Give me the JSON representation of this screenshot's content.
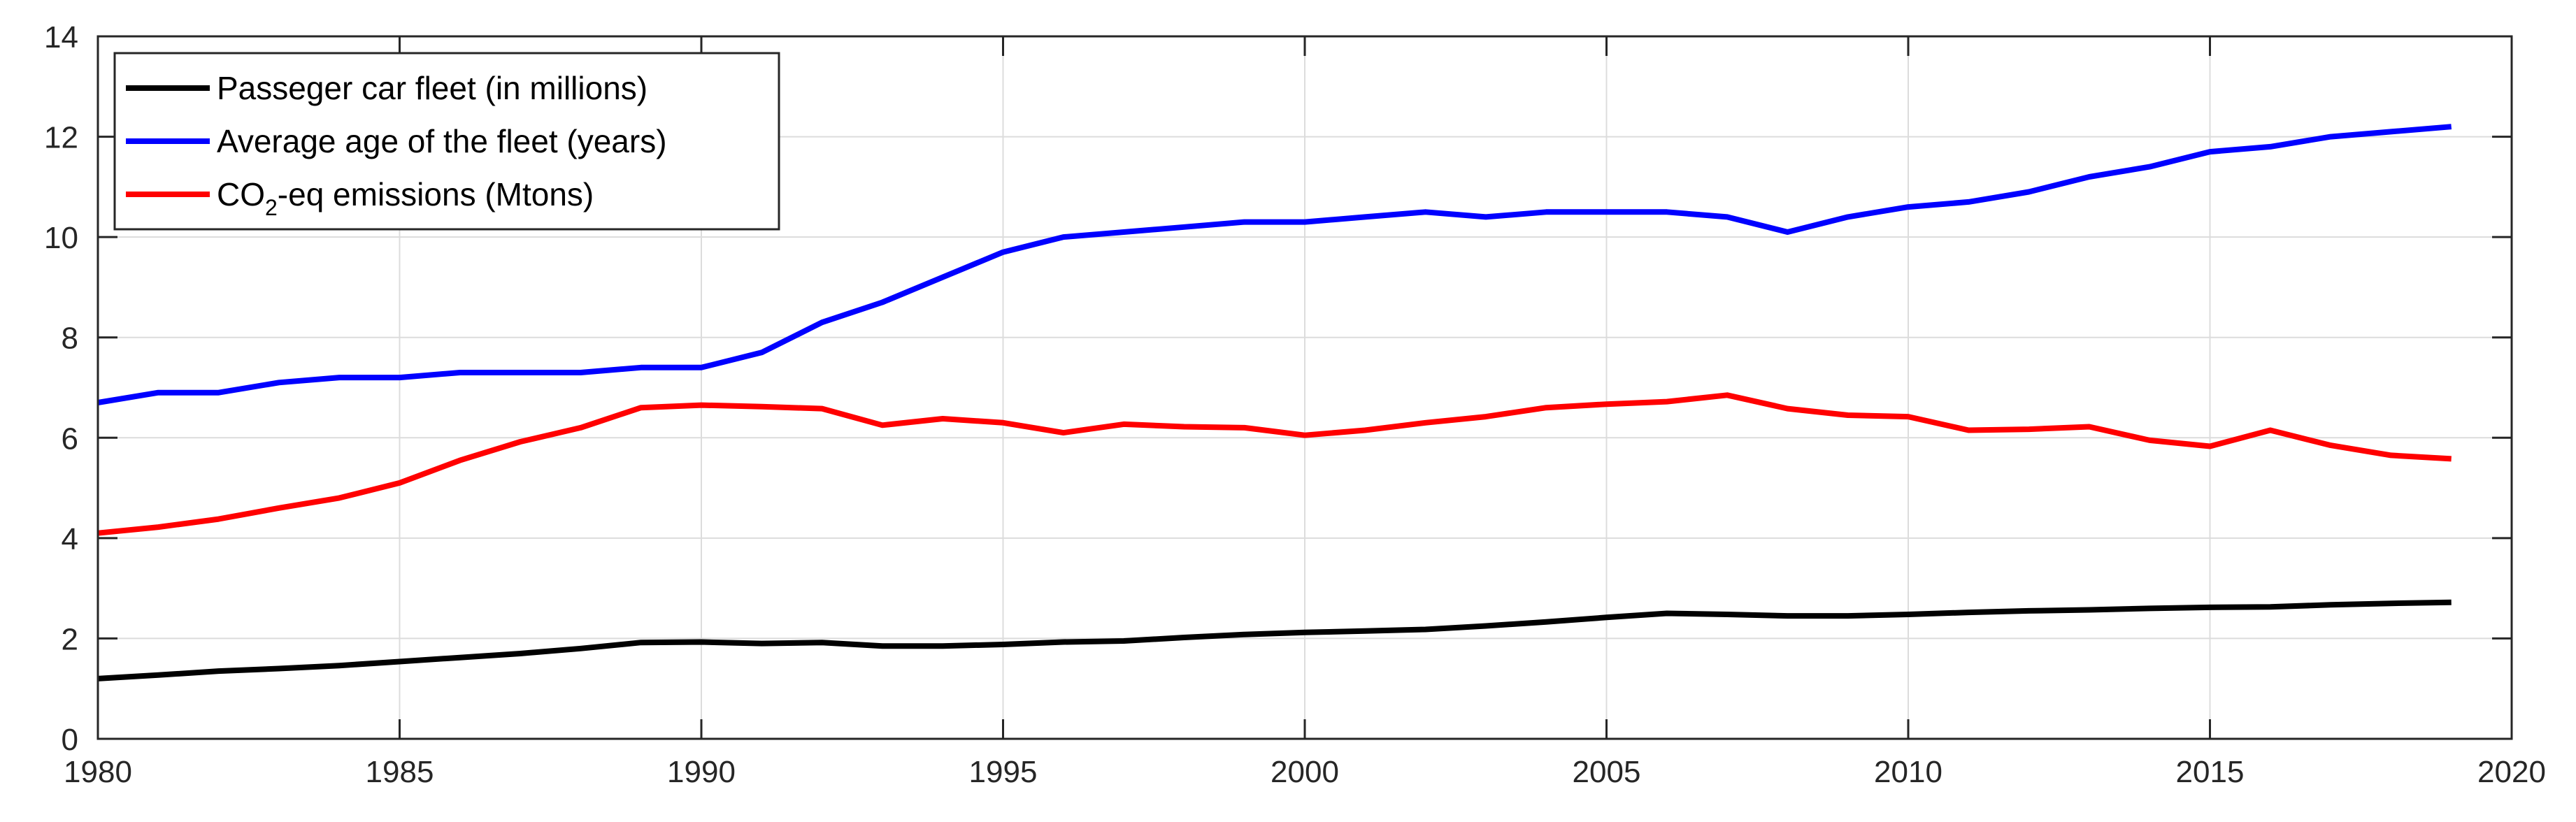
{
  "chart_data": {
    "type": "line",
    "title": "",
    "xlabel": "",
    "ylabel": "",
    "xlim": [
      1980,
      2020
    ],
    "ylim": [
      0,
      14
    ],
    "xticks": [
      1980,
      1985,
      1990,
      1995,
      2000,
      2005,
      2010,
      2015,
      2020
    ],
    "yticks": [
      0,
      2,
      4,
      6,
      8,
      10,
      12,
      14
    ],
    "grid": true,
    "legend_position": "top-left",
    "x": [
      1980,
      1981,
      1982,
      1983,
      1984,
      1985,
      1986,
      1987,
      1988,
      1989,
      1990,
      1991,
      1992,
      1993,
      1994,
      1995,
      1996,
      1997,
      1998,
      1999,
      2000,
      2001,
      2002,
      2003,
      2004,
      2005,
      2006,
      2007,
      2008,
      2009,
      2010,
      2011,
      2012,
      2013,
      2014,
      2015,
      2016,
      2017,
      2018,
      2019
    ],
    "series": [
      {
        "name": "Passeger car fleet (in millions)",
        "color": "#000000",
        "values": [
          1.2,
          1.27,
          1.35,
          1.4,
          1.46,
          1.54,
          1.62,
          1.7,
          1.8,
          1.92,
          1.93,
          1.9,
          1.92,
          1.85,
          1.85,
          1.88,
          1.93,
          1.95,
          2.02,
          2.08,
          2.12,
          2.15,
          2.18,
          2.25,
          2.33,
          2.42,
          2.5,
          2.48,
          2.45,
          2.45,
          2.48,
          2.52,
          2.55,
          2.57,
          2.6,
          2.62,
          2.63,
          2.67,
          2.7,
          2.72
        ]
      },
      {
        "name": "Average age of the fleet (years)",
        "color": "#0000ff",
        "values": [
          6.7,
          6.9,
          6.9,
          7.1,
          7.2,
          7.2,
          7.3,
          7.3,
          7.3,
          7.4,
          7.4,
          7.7,
          8.3,
          8.7,
          9.2,
          9.7,
          10.0,
          10.1,
          10.2,
          10.3,
          10.3,
          10.4,
          10.5,
          10.4,
          10.5,
          10.5,
          10.5,
          10.4,
          10.1,
          10.4,
          10.6,
          10.7,
          10.9,
          11.2,
          11.4,
          11.7,
          11.8,
          12.0,
          12.1,
          12.2
        ]
      },
      {
        "name": "CO₂-eq emissions (Mtons)",
        "name_parts": [
          "CO",
          "2",
          "-eq emissions (Mtons)"
        ],
        "color": "#ff0000",
        "values": [
          4.1,
          4.22,
          4.38,
          4.6,
          4.8,
          5.1,
          5.55,
          5.92,
          6.2,
          6.6,
          6.65,
          6.62,
          6.58,
          6.25,
          6.38,
          6.3,
          6.1,
          6.27,
          6.22,
          6.2,
          6.05,
          6.15,
          6.3,
          6.42,
          6.6,
          6.67,
          6.72,
          6.85,
          6.58,
          6.45,
          6.42,
          6.15,
          6.17,
          6.22,
          5.95,
          5.83,
          6.15,
          5.85,
          5.65,
          5.58
        ]
      }
    ]
  }
}
